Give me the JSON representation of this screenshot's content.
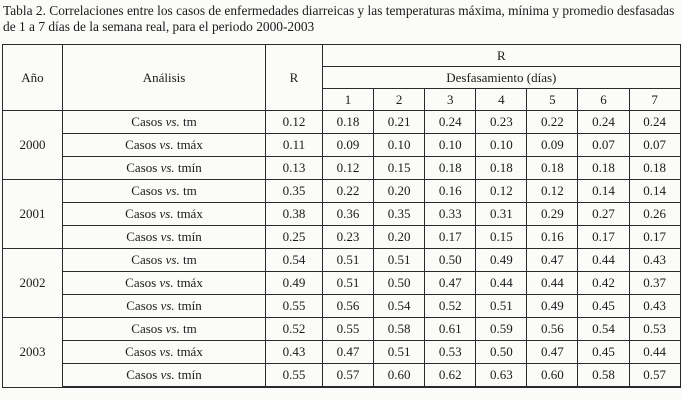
{
  "title": "Tabla 2. Correlaciones entre los casos de enfermedades diarreicas y las temperaturas máxima, mínima y promedio desfasadas de 1 a 7 días de la semana real, para el periodo 2000-2003",
  "colors": {
    "ink": "#1b1b1b",
    "paper": "#fbfbf9",
    "grid_line": "#2a2a2a"
  },
  "table": {
    "headers": {
      "year": "Año",
      "analysis": "Análisis",
      "r": "R",
      "group_r": "R",
      "lag": "Desfasamiento (días)",
      "days": [
        "1",
        "2",
        "3",
        "4",
        "5",
        "6",
        "7"
      ]
    },
    "groups": [
      {
        "year": "2000",
        "rows": [
          {
            "analysis_pre": "Casos",
            "analysis_vs": "vs.",
            "analysis_obj": "tm",
            "r": "0.12",
            "days": [
              "0.18",
              "0.21",
              "0.24",
              "0.23",
              "0.22",
              "0.24",
              "0.24"
            ]
          },
          {
            "analysis_pre": "Casos",
            "analysis_vs": "vs.",
            "analysis_obj": "tmáx",
            "r": "0.11",
            "days": [
              "0.09",
              "0.10",
              "0.10",
              "0.10",
              "0.09",
              "0.07",
              "0.07"
            ]
          },
          {
            "analysis_pre": "Casos",
            "analysis_vs": "vs.",
            "analysis_obj": "tmín",
            "r": "0.13",
            "days": [
              "0.12",
              "0.15",
              "0.18",
              "0.18",
              "0.18",
              "0.18",
              "0.18"
            ]
          }
        ]
      },
      {
        "year": "2001",
        "rows": [
          {
            "analysis_pre": "Casos",
            "analysis_vs": "vs.",
            "analysis_obj": "tm",
            "r": "0.35",
            "days": [
              "0.22",
              "0.20",
              "0.16",
              "0.12",
              "0.12",
              "0.14",
              "0.14"
            ]
          },
          {
            "analysis_pre": "Casos",
            "analysis_vs": "vs.",
            "analysis_obj": "tmáx",
            "r": "0.38",
            "days": [
              "0.36",
              "0.35",
              "0.33",
              "0.31",
              "0.29",
              "0.27",
              "0.26"
            ]
          },
          {
            "analysis_pre": "Casos",
            "analysis_vs": "vs.",
            "analysis_obj": "tmín",
            "r": "0.25",
            "days": [
              "0.23",
              "0.20",
              "0.17",
              "0.15",
              "0.16",
              "0.17",
              "0.17"
            ]
          }
        ]
      },
      {
        "year": "2002",
        "rows": [
          {
            "analysis_pre": "Casos",
            "analysis_vs": "vs.",
            "analysis_obj": "tm",
            "r": "0.54",
            "days": [
              "0.51",
              "0.51",
              "0.50",
              "0.49",
              "0.47",
              "0.44",
              "0.43"
            ]
          },
          {
            "analysis_pre": "Casos",
            "analysis_vs": "vs.",
            "analysis_obj": "tmáx",
            "r": "0.49",
            "days": [
              "0.51",
              "0.50",
              "0.47",
              "0.44",
              "0.44",
              "0.42",
              "0.37"
            ]
          },
          {
            "analysis_pre": "Casos",
            "analysis_vs": "vs.",
            "analysis_obj": "tmín",
            "r": "0.55",
            "days": [
              "0.56",
              "0.54",
              "0.52",
              "0.51",
              "0.49",
              "0.45",
              "0.43"
            ]
          }
        ]
      },
      {
        "year": "2003",
        "rows": [
          {
            "analysis_pre": "Casos",
            "analysis_vs": "vs.",
            "analysis_obj": "tm",
            "r": "0.52",
            "days": [
              "0.55",
              "0.58",
              "0.61",
              "0.59",
              "0.56",
              "0.54",
              "0.53"
            ]
          },
          {
            "analysis_pre": "Casos",
            "analysis_vs": "vs.",
            "analysis_obj": "tmáx",
            "r": "0.43",
            "days": [
              "0.47",
              "0.51",
              "0.53",
              "0.50",
              "0.47",
              "0.45",
              "0.44"
            ]
          },
          {
            "analysis_pre": "Casos",
            "analysis_vs": "vs.",
            "analysis_obj": "tmín",
            "r": "0.55",
            "days": [
              "0.57",
              "0.60",
              "0.62",
              "0.63",
              "0.60",
              "0.58",
              "0.57"
            ]
          }
        ]
      }
    ]
  }
}
